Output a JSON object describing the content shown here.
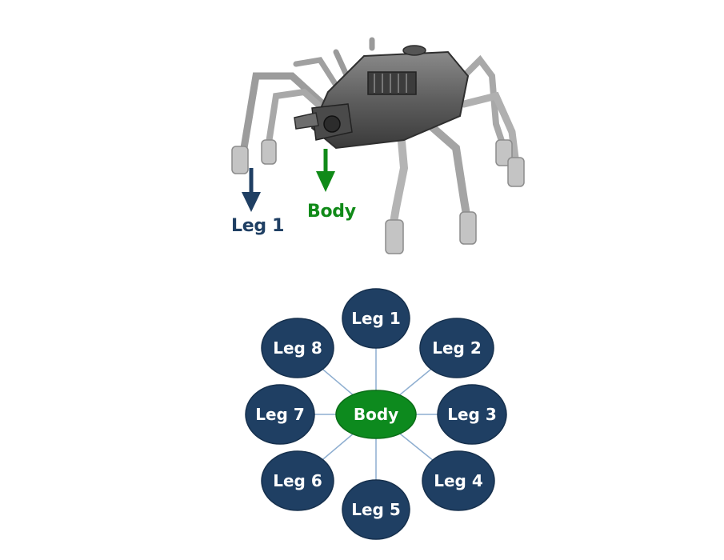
{
  "colors": {
    "leg_node": "#1f3f63",
    "body_node": "#0d8a1e",
    "body_node_dark": "#0a6d17",
    "edge": "#8eaed0",
    "leg_callout": "#1f3f63",
    "body_callout": "#108a18"
  },
  "robot": {
    "callouts": {
      "leg1": "Leg 1",
      "body": "Body"
    }
  },
  "graph": {
    "center": {
      "id": "body",
      "label": "Body"
    },
    "nodes": [
      {
        "id": "leg1",
        "label": "Leg 1"
      },
      {
        "id": "leg2",
        "label": "Leg 2"
      },
      {
        "id": "leg3",
        "label": "Leg 3"
      },
      {
        "id": "leg4",
        "label": "Leg 4"
      },
      {
        "id": "leg5",
        "label": "Leg 5"
      },
      {
        "id": "leg6",
        "label": "Leg 6"
      },
      {
        "id": "leg7",
        "label": "Leg 7"
      },
      {
        "id": "leg8",
        "label": "Leg 8"
      }
    ],
    "edges": [
      [
        "body",
        "leg1"
      ],
      [
        "body",
        "leg2"
      ],
      [
        "body",
        "leg3"
      ],
      [
        "body",
        "leg4"
      ],
      [
        "body",
        "leg5"
      ],
      [
        "body",
        "leg6"
      ],
      [
        "body",
        "leg7"
      ],
      [
        "body",
        "leg8"
      ]
    ]
  }
}
